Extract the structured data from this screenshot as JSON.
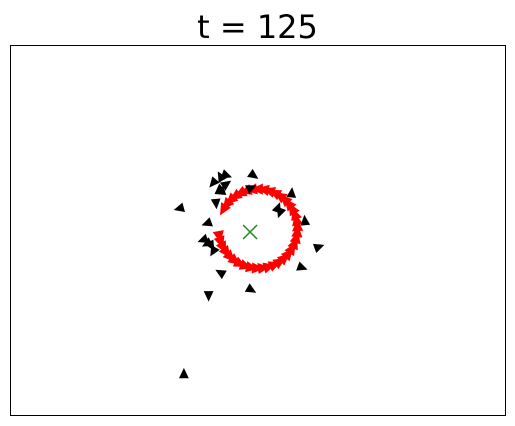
{
  "chart_data": {
    "type": "scatter",
    "title": "t = 125",
    "xlabel": "",
    "ylabel": "",
    "xlim": [
      0,
      100
    ],
    "ylim": [
      0,
      100
    ],
    "grid": false,
    "ticks": false,
    "colors": {
      "black_agents": "#000000",
      "red_agents": "#ff0000",
      "target": "#228b22",
      "frame": "#000000"
    },
    "target": {
      "x": 48.4,
      "y": 49.6,
      "marker": "x"
    },
    "series": [
      {
        "marker": "triangle",
        "color": "#000000",
        "points": [
          {
            "x": 34.2,
            "y": 56.0,
            "angle": 195
          },
          {
            "x": 39.8,
            "y": 52.0,
            "angle": 200
          },
          {
            "x": 41.0,
            "y": 63.0,
            "angle": 230
          },
          {
            "x": 41.5,
            "y": 57.5,
            "angle": 275
          },
          {
            "x": 42.2,
            "y": 61.0,
            "angle": 220
          },
          {
            "x": 42.5,
            "y": 64.5,
            "angle": 120
          },
          {
            "x": 43.5,
            "y": 65.0,
            "angle": 340
          },
          {
            "x": 42.5,
            "y": 60.5,
            "angle": 200
          },
          {
            "x": 43.5,
            "y": 62.5,
            "angle": 35
          },
          {
            "x": 49.0,
            "y": 65.0,
            "angle": 325
          },
          {
            "x": 48.5,
            "y": 61.5,
            "angle": 25
          },
          {
            "x": 56.8,
            "y": 60.0,
            "angle": 85
          },
          {
            "x": 54.5,
            "y": 55.0,
            "angle": 250
          },
          {
            "x": 54.0,
            "y": 56.0,
            "angle": 70
          },
          {
            "x": 59.5,
            "y": 52.5,
            "angle": 95
          },
          {
            "x": 39.0,
            "y": 47.5,
            "angle": 200
          },
          {
            "x": 39.8,
            "y": 46.5,
            "angle": 210
          },
          {
            "x": 40.5,
            "y": 46.0,
            "angle": 300
          },
          {
            "x": 41.0,
            "y": 44.5,
            "angle": 240
          },
          {
            "x": 62.2,
            "y": 45.5,
            "angle": 20
          },
          {
            "x": 58.8,
            "y": 40.0,
            "angle": 340
          },
          {
            "x": 42.5,
            "y": 38.5,
            "angle": 150
          },
          {
            "x": 40.0,
            "y": 32.5,
            "angle": 270
          },
          {
            "x": 48.5,
            "y": 34.0,
            "angle": 330
          },
          {
            "x": 35.0,
            "y": 11.0,
            "angle": 90
          }
        ]
      },
      {
        "marker": "triangle",
        "color": "#ff0000",
        "arc": {
          "cx": 50.0,
          "cy": 50.5,
          "r": 8.0,
          "start_deg": 190,
          "end_deg": 510,
          "count": 38
        }
      }
    ]
  }
}
